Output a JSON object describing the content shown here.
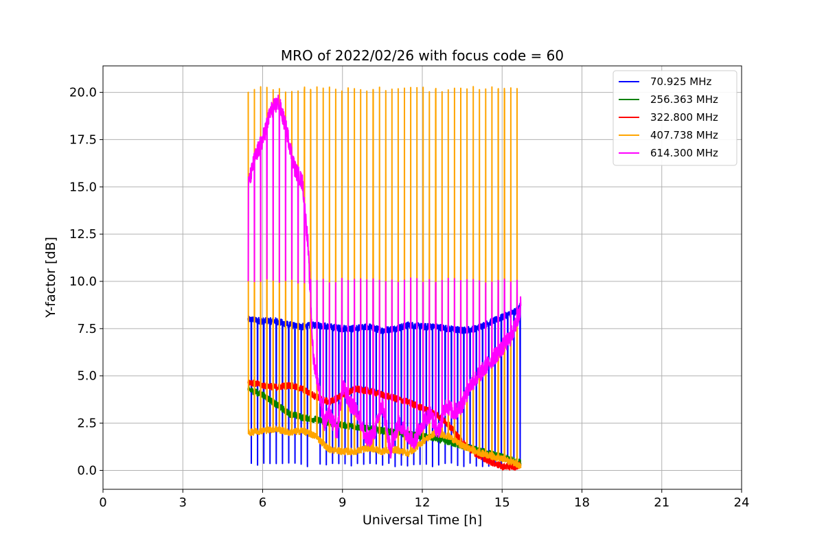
{
  "chart_data": {
    "type": "line",
    "title": "MRO of 2022/02/26 with focus code = 60",
    "xlabel": "Universal Time [h]",
    "ylabel": "Y-factor [dB]",
    "xlim": [
      0,
      24
    ],
    "ylim": [
      -1,
      21.4
    ],
    "xticks": [
      0,
      3,
      6,
      9,
      12,
      15,
      18,
      21,
      24
    ],
    "xtick_labels": [
      "0",
      "3",
      "6",
      "9",
      "12",
      "15",
      "18",
      "21",
      "24"
    ],
    "yticks": [
      0.0,
      2.5,
      5.0,
      7.5,
      10.0,
      12.5,
      15.0,
      17.5,
      20.0
    ],
    "ytick_labels": [
      "0.0",
      "2.5",
      "5.0",
      "7.5",
      "10.0",
      "12.5",
      "15.0",
      "17.5",
      "20.0"
    ],
    "grid": true,
    "legend_position": "top-right",
    "series": [
      {
        "name": " 70.925 MHz",
        "color": "#0000ff",
        "x": [
          5.45,
          6.0,
          6.5,
          7.0,
          7.5,
          8.0,
          8.5,
          9.0,
          9.5,
          10.0,
          10.5,
          11.0,
          11.5,
          12.0,
          12.5,
          13.0,
          13.5,
          14.0,
          14.5,
          15.0,
          15.5,
          15.7
        ],
        "y": [
          8.0,
          7.9,
          7.9,
          7.7,
          7.6,
          7.7,
          7.6,
          7.5,
          7.5,
          7.6,
          7.4,
          7.5,
          7.7,
          7.6,
          7.6,
          7.5,
          7.4,
          7.5,
          7.8,
          8.1,
          8.4,
          8.7
        ],
        "dips_to": 0.2
      },
      {
        "name": "256.363 MHz",
        "color": "#008000",
        "x": [
          5.45,
          6.0,
          6.5,
          7.0,
          7.5,
          8.0,
          8.5,
          9.0,
          9.5,
          10.0,
          10.5,
          11.0,
          11.5,
          12.0,
          12.5,
          13.0,
          13.5,
          14.0,
          14.5,
          15.0,
          15.5,
          15.7
        ],
        "y": [
          4.3,
          4.0,
          3.5,
          3.0,
          2.8,
          2.7,
          2.5,
          2.4,
          2.3,
          2.2,
          2.1,
          2.0,
          1.9,
          1.8,
          1.7,
          1.5,
          1.3,
          1.1,
          0.9,
          0.7,
          0.5,
          0.4
        ]
      },
      {
        "name": "322.800 MHz",
        "color": "#ff0000",
        "x": [
          5.45,
          6.0,
          6.5,
          7.0,
          7.5,
          8.0,
          8.5,
          9.0,
          9.5,
          10.0,
          10.5,
          11.0,
          11.5,
          12.0,
          12.5,
          13.0,
          13.5,
          14.0,
          14.5,
          15.0,
          15.5,
          15.7
        ],
        "y": [
          4.7,
          4.5,
          4.4,
          4.5,
          4.3,
          3.9,
          3.6,
          4.0,
          4.3,
          4.2,
          4.0,
          3.8,
          3.6,
          3.3,
          3.0,
          2.4,
          1.5,
          0.9,
          0.5,
          0.2,
          0.2,
          0.3
        ]
      },
      {
        "name": "407.738 MHz",
        "color": "#ffa500",
        "x": [
          5.45,
          6.0,
          6.5,
          7.0,
          7.5,
          8.0,
          8.5,
          9.0,
          9.5,
          10.0,
          10.5,
          11.0,
          11.5,
          12.0,
          12.5,
          13.0,
          13.5,
          14.0,
          14.5,
          15.0,
          15.5,
          15.7
        ],
        "y": [
          2.0,
          2.1,
          2.2,
          2.0,
          2.1,
          1.8,
          1.1,
          1.0,
          1.0,
          1.2,
          1.0,
          1.1,
          0.9,
          1.5,
          2.0,
          1.8,
          1.3,
          1.0,
          0.8,
          0.6,
          0.4,
          0.2
        ],
        "spikes_to": 20.3
      },
      {
        "name": "614.300 MHz",
        "color": "#ff00ff",
        "x": [
          5.45,
          5.7,
          6.0,
          6.3,
          6.6,
          6.9,
          7.2,
          7.5,
          7.7,
          7.9,
          8.1,
          8.3,
          8.5,
          8.8,
          9.0,
          9.3,
          9.6,
          9.9,
          10.2,
          10.5,
          10.8,
          11.1,
          11.4,
          11.7,
          12.0,
          12.3,
          12.6,
          12.9,
          13.2,
          13.5,
          13.8,
          14.1,
          14.4,
          14.7,
          15.0,
          15.3,
          15.6,
          15.7
        ],
        "y": [
          15.0,
          16.5,
          17.5,
          19.0,
          19.5,
          18.0,
          16.0,
          15.2,
          12.0,
          6.0,
          4.5,
          2.5,
          3.0,
          2.0,
          4.5,
          3.5,
          3.0,
          1.5,
          2.0,
          3.5,
          1.0,
          2.5,
          2.0,
          1.5,
          2.5,
          3.0,
          2.0,
          3.5,
          3.0,
          3.5,
          4.5,
          5.0,
          5.5,
          6.0,
          6.5,
          7.0,
          8.0,
          8.8
        ],
        "spikes_to": 10.2
      }
    ]
  }
}
